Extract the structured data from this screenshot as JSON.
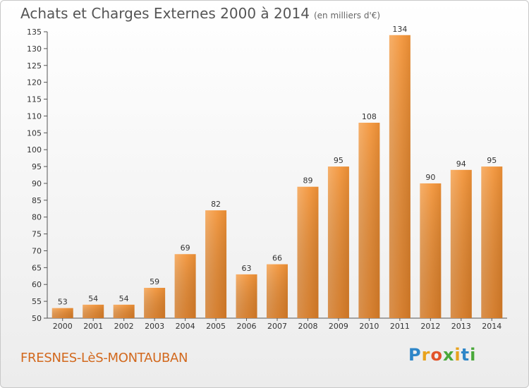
{
  "header": {
    "title": "Achats et Charges Externes 2000 à 2014",
    "subtitle": "(en milliers d'€)"
  },
  "footer": {
    "place": "FRESNES-LèS-MONTAUBAN",
    "logo": "Proxiti"
  },
  "colors": {
    "bar_top": "#f6a55a",
    "bar_bottom": "#d97a1f",
    "place_text": "#d2691e"
  },
  "chart_data": {
    "type": "bar",
    "title": "Achats et Charges Externes 2000 à 2014",
    "subtitle": "(en milliers d'€)",
    "xlabel": "",
    "ylabel": "",
    "categories": [
      "2000",
      "2001",
      "2002",
      "2003",
      "2004",
      "2005",
      "2006",
      "2007",
      "2008",
      "2009",
      "2010",
      "2011",
      "2012",
      "2013",
      "2014"
    ],
    "values": [
      53,
      54,
      54,
      59,
      69,
      82,
      63,
      66,
      89,
      95,
      108,
      134,
      90,
      94,
      95
    ],
    "ylim": [
      50,
      135
    ],
    "yticks": [
      50,
      55,
      60,
      65,
      70,
      75,
      80,
      85,
      90,
      95,
      100,
      105,
      110,
      115,
      120,
      125,
      130,
      135
    ],
    "grid": false,
    "legend": "none"
  }
}
